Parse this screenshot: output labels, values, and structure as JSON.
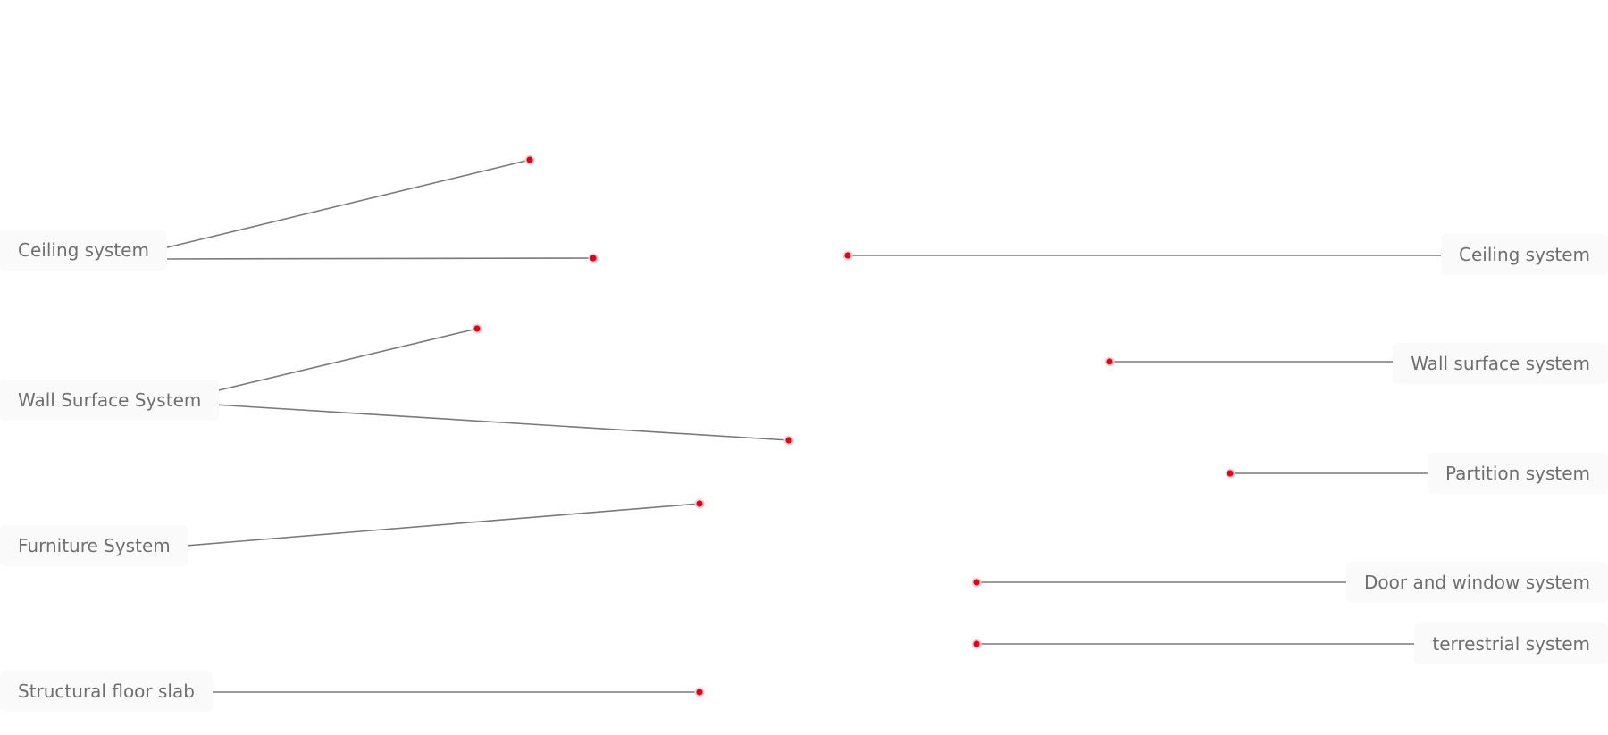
{
  "colors": {
    "leader_line": "#7a7a7a",
    "anchor_dot": "#e0001b",
    "anchor_ring": "#ffd0d0",
    "label_text": "#6f6f6f",
    "label_bg": "#fafafa"
  },
  "left_labels": [
    {
      "id": "ceiling",
      "text": "Ceiling system"
    },
    {
      "id": "wall",
      "text": "Wall Surface System"
    },
    {
      "id": "furniture",
      "text": "Furniture System"
    },
    {
      "id": "slab",
      "text": "Structural floor slab"
    }
  ],
  "right_labels": [
    {
      "id": "ceiling",
      "text": "Ceiling system"
    },
    {
      "id": "wall",
      "text": "Wall surface system"
    },
    {
      "id": "partition",
      "text": "Partition system"
    },
    {
      "id": "door",
      "text": "Door and window system"
    },
    {
      "id": "terrestrial",
      "text": "terrestrial system"
    }
  ]
}
